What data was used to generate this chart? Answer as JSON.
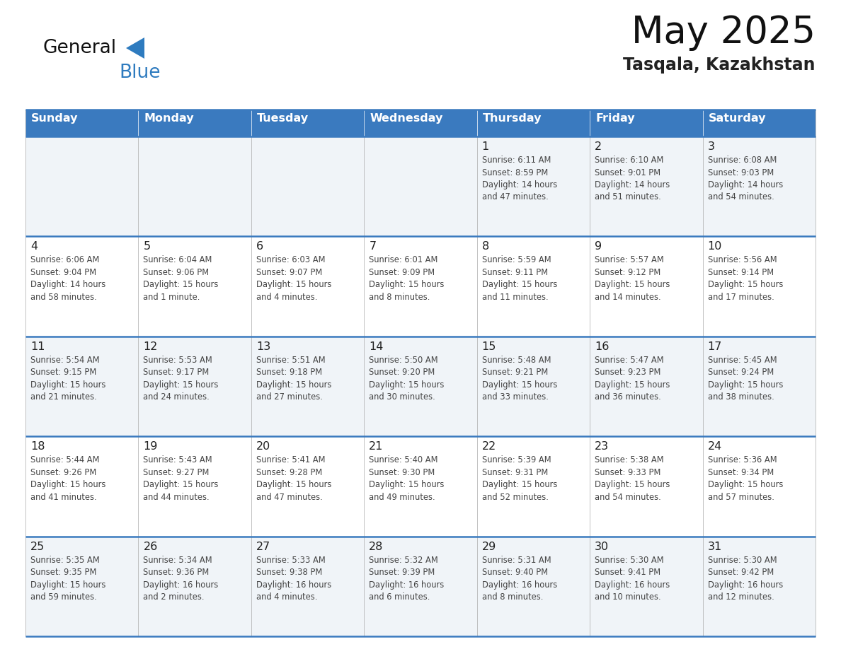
{
  "title": "May 2025",
  "subtitle": "Tasqala, Kazakhstan",
  "header_color": "#3a7abf",
  "header_text_color": "#ffffff",
  "cell_bg_light": "#f0f4f8",
  "cell_bg_white": "#ffffff",
  "border_color": "#3a7abf",
  "inner_border_color": "#aaaaaa",
  "text_color": "#333333",
  "days_of_week": [
    "Sunday",
    "Monday",
    "Tuesday",
    "Wednesday",
    "Thursday",
    "Friday",
    "Saturday"
  ],
  "logo_general_color": "#111111",
  "logo_blue_color": "#2e7bbf",
  "logo_triangle_color": "#2e7bbf",
  "weeks": [
    [
      {
        "day": "",
        "info": ""
      },
      {
        "day": "",
        "info": ""
      },
      {
        "day": "",
        "info": ""
      },
      {
        "day": "",
        "info": ""
      },
      {
        "day": "1",
        "info": "Sunrise: 6:11 AM\nSunset: 8:59 PM\nDaylight: 14 hours\nand 47 minutes."
      },
      {
        "day": "2",
        "info": "Sunrise: 6:10 AM\nSunset: 9:01 PM\nDaylight: 14 hours\nand 51 minutes."
      },
      {
        "day": "3",
        "info": "Sunrise: 6:08 AM\nSunset: 9:03 PM\nDaylight: 14 hours\nand 54 minutes."
      }
    ],
    [
      {
        "day": "4",
        "info": "Sunrise: 6:06 AM\nSunset: 9:04 PM\nDaylight: 14 hours\nand 58 minutes."
      },
      {
        "day": "5",
        "info": "Sunrise: 6:04 AM\nSunset: 9:06 PM\nDaylight: 15 hours\nand 1 minute."
      },
      {
        "day": "6",
        "info": "Sunrise: 6:03 AM\nSunset: 9:07 PM\nDaylight: 15 hours\nand 4 minutes."
      },
      {
        "day": "7",
        "info": "Sunrise: 6:01 AM\nSunset: 9:09 PM\nDaylight: 15 hours\nand 8 minutes."
      },
      {
        "day": "8",
        "info": "Sunrise: 5:59 AM\nSunset: 9:11 PM\nDaylight: 15 hours\nand 11 minutes."
      },
      {
        "day": "9",
        "info": "Sunrise: 5:57 AM\nSunset: 9:12 PM\nDaylight: 15 hours\nand 14 minutes."
      },
      {
        "day": "10",
        "info": "Sunrise: 5:56 AM\nSunset: 9:14 PM\nDaylight: 15 hours\nand 17 minutes."
      }
    ],
    [
      {
        "day": "11",
        "info": "Sunrise: 5:54 AM\nSunset: 9:15 PM\nDaylight: 15 hours\nand 21 minutes."
      },
      {
        "day": "12",
        "info": "Sunrise: 5:53 AM\nSunset: 9:17 PM\nDaylight: 15 hours\nand 24 minutes."
      },
      {
        "day": "13",
        "info": "Sunrise: 5:51 AM\nSunset: 9:18 PM\nDaylight: 15 hours\nand 27 minutes."
      },
      {
        "day": "14",
        "info": "Sunrise: 5:50 AM\nSunset: 9:20 PM\nDaylight: 15 hours\nand 30 minutes."
      },
      {
        "day": "15",
        "info": "Sunrise: 5:48 AM\nSunset: 9:21 PM\nDaylight: 15 hours\nand 33 minutes."
      },
      {
        "day": "16",
        "info": "Sunrise: 5:47 AM\nSunset: 9:23 PM\nDaylight: 15 hours\nand 36 minutes."
      },
      {
        "day": "17",
        "info": "Sunrise: 5:45 AM\nSunset: 9:24 PM\nDaylight: 15 hours\nand 38 minutes."
      }
    ],
    [
      {
        "day": "18",
        "info": "Sunrise: 5:44 AM\nSunset: 9:26 PM\nDaylight: 15 hours\nand 41 minutes."
      },
      {
        "day": "19",
        "info": "Sunrise: 5:43 AM\nSunset: 9:27 PM\nDaylight: 15 hours\nand 44 minutes."
      },
      {
        "day": "20",
        "info": "Sunrise: 5:41 AM\nSunset: 9:28 PM\nDaylight: 15 hours\nand 47 minutes."
      },
      {
        "day": "21",
        "info": "Sunrise: 5:40 AM\nSunset: 9:30 PM\nDaylight: 15 hours\nand 49 minutes."
      },
      {
        "day": "22",
        "info": "Sunrise: 5:39 AM\nSunset: 9:31 PM\nDaylight: 15 hours\nand 52 minutes."
      },
      {
        "day": "23",
        "info": "Sunrise: 5:38 AM\nSunset: 9:33 PM\nDaylight: 15 hours\nand 54 minutes."
      },
      {
        "day": "24",
        "info": "Sunrise: 5:36 AM\nSunset: 9:34 PM\nDaylight: 15 hours\nand 57 minutes."
      }
    ],
    [
      {
        "day": "25",
        "info": "Sunrise: 5:35 AM\nSunset: 9:35 PM\nDaylight: 15 hours\nand 59 minutes."
      },
      {
        "day": "26",
        "info": "Sunrise: 5:34 AM\nSunset: 9:36 PM\nDaylight: 16 hours\nand 2 minutes."
      },
      {
        "day": "27",
        "info": "Sunrise: 5:33 AM\nSunset: 9:38 PM\nDaylight: 16 hours\nand 4 minutes."
      },
      {
        "day": "28",
        "info": "Sunrise: 5:32 AM\nSunset: 9:39 PM\nDaylight: 16 hours\nand 6 minutes."
      },
      {
        "day": "29",
        "info": "Sunrise: 5:31 AM\nSunset: 9:40 PM\nDaylight: 16 hours\nand 8 minutes."
      },
      {
        "day": "30",
        "info": "Sunrise: 5:30 AM\nSunset: 9:41 PM\nDaylight: 16 hours\nand 10 minutes."
      },
      {
        "day": "31",
        "info": "Sunrise: 5:30 AM\nSunset: 9:42 PM\nDaylight: 16 hours\nand 12 minutes."
      }
    ]
  ]
}
